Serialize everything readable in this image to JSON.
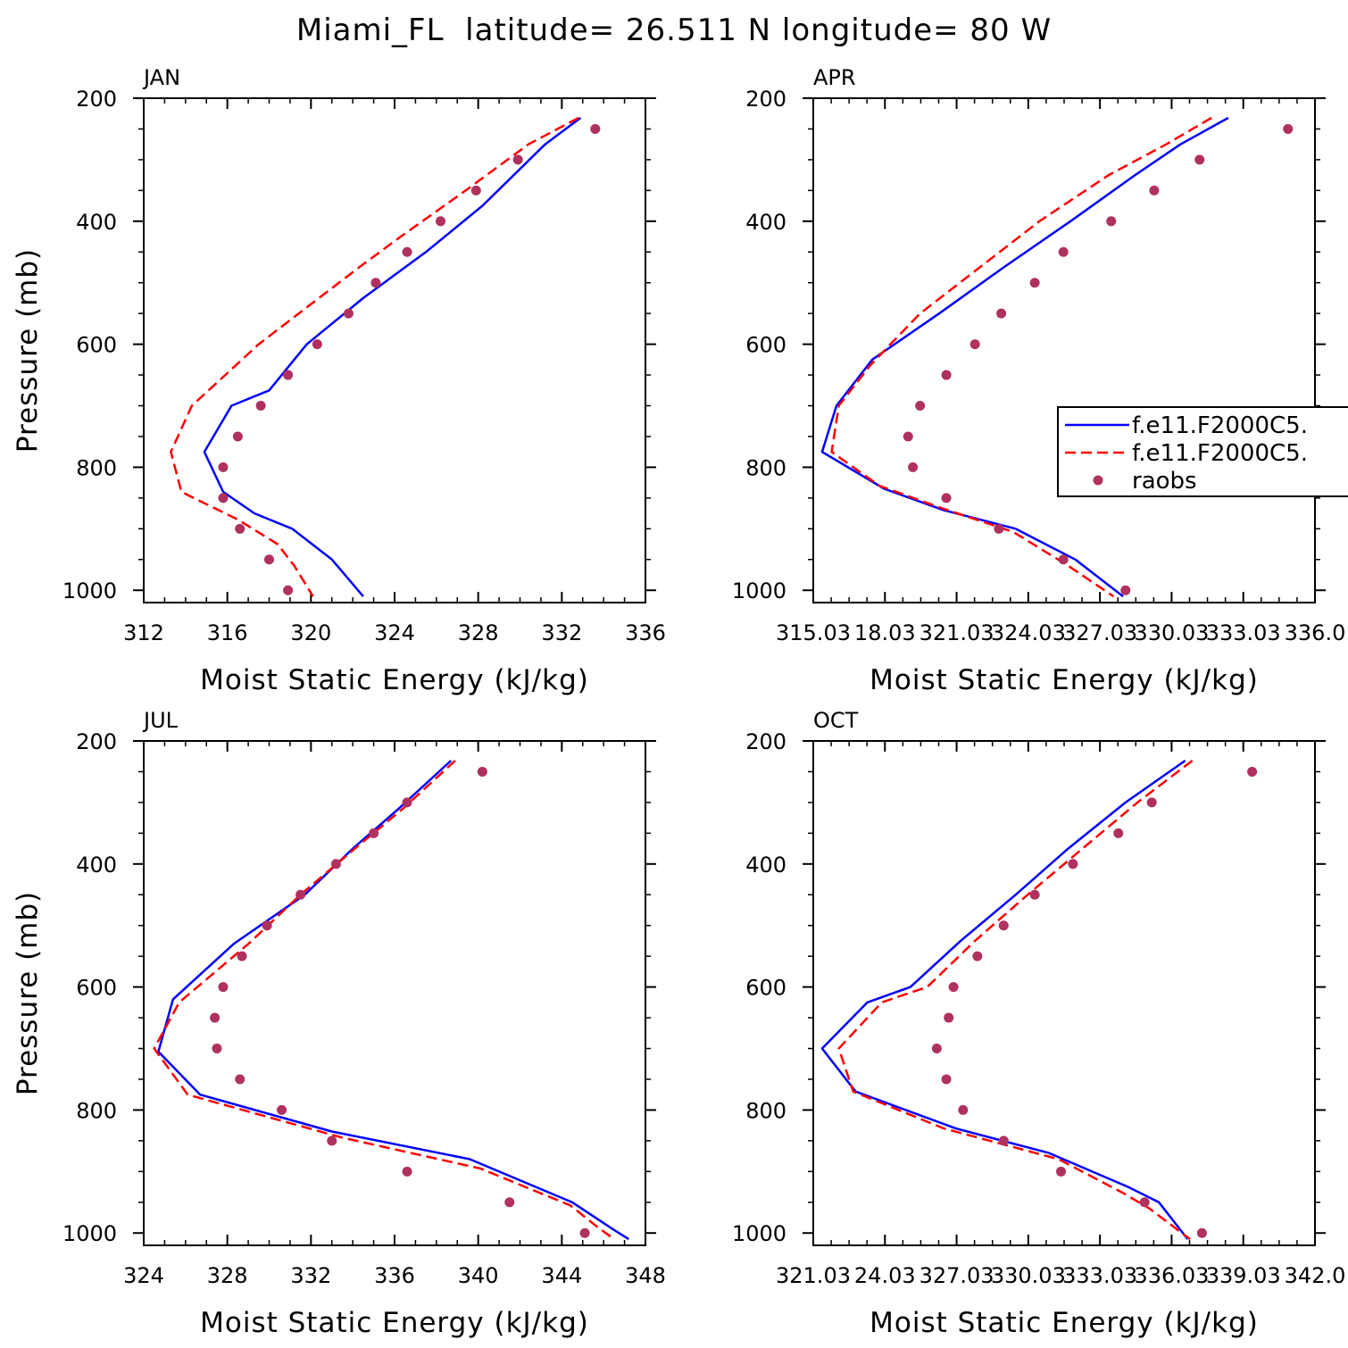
{
  "figure": {
    "title": "Miami_FL  latitude= 26.511 N longitude= 80 W"
  },
  "chart_data": [
    {
      "type": "line",
      "panel": "JAN",
      "xlabel": "Moist Static Energy (kJ/kg)",
      "ylabel": "Pressure (mb)",
      "xlim": [
        312,
        336
      ],
      "ylim": [
        1020,
        200
      ],
      "x_ticks": [
        "312",
        "316",
        "320",
        "324",
        "328",
        "332",
        "336"
      ],
      "y_ticks": [
        "200",
        "400",
        "600",
        "800",
        "1000"
      ],
      "y_ticks_values": [
        200,
        400,
        600,
        800,
        1000
      ],
      "series": [
        {
          "name": "f.e11.F2000C5.",
          "style": "solid",
          "color": "#0000ff",
          "x": [
            332.9,
            331.2,
            328.2,
            325.5,
            322.5,
            319.8,
            318.0,
            316.2,
            314.9,
            315.8,
            317.3,
            319.1,
            321.0,
            322.5
          ],
          "y": [
            232,
            275,
            375,
            450,
            525,
            600,
            675,
            700,
            775,
            840,
            875,
            900,
            950,
            1010
          ]
        },
        {
          "name": "f.e11.F2000C5.",
          "style": "dashed",
          "color": "#ff0000",
          "x": [
            332.8,
            330.4,
            327.4,
            324.3,
            322.3,
            319.8,
            317.5,
            314.3,
            313.3,
            313.8,
            316.5,
            318.4,
            319.2,
            320.1
          ],
          "y": [
            232,
            275,
            350,
            425,
            475,
            540,
            600,
            700,
            775,
            840,
            885,
            925,
            960,
            1010
          ]
        },
        {
          "name": "raobs",
          "style": "dots",
          "color": "#b03060",
          "x": [
            333.6,
            329.9,
            327.9,
            326.2,
            324.6,
            323.1,
            321.8,
            320.3,
            318.9,
            317.6,
            316.5,
            315.8,
            315.8,
            316.6,
            318.0,
            318.9
          ],
          "y": [
            250,
            300,
            350,
            400,
            450,
            500,
            550,
            600,
            650,
            700,
            750,
            800,
            850,
            900,
            950,
            1000
          ]
        }
      ]
    },
    {
      "type": "line",
      "panel": "APR",
      "xlabel": "Moist Static Energy (kJ/kg)",
      "ylabel": "",
      "xlim": [
        315.03,
        336.03
      ],
      "ylim": [
        1020,
        200
      ],
      "x_ticks": [
        "315.03",
        "18.03",
        "321.03",
        "324.03",
        "327.03",
        "330.03",
        "333.03",
        "336.0"
      ],
      "x_ticks_values": [
        315.03,
        318.03,
        321.03,
        324.03,
        327.03,
        330.03,
        333.03,
        336.03
      ],
      "y_ticks": [
        "200",
        "400",
        "600",
        "800",
        "1000"
      ],
      "y_ticks_values": [
        200,
        400,
        600,
        800,
        1000
      ],
      "legend": {
        "placement": "right-middle",
        "entries": [
          "f.e11.F2000C5.",
          "f.e11.F2000C5.",
          "raobs"
        ]
      },
      "series": [
        {
          "name": "f.e11.F2000C5.",
          "style": "solid",
          "color": "#0000ff",
          "x": [
            332.4,
            330.4,
            328.5,
            325.8,
            323.0,
            320.3,
            317.5,
            316.0,
            315.4,
            318.0,
            320.5,
            323.5,
            326.0,
            328.0
          ],
          "y": [
            232,
            275,
            325,
            400,
            475,
            550,
            625,
            700,
            775,
            835,
            870,
            900,
            950,
            1010
          ]
        },
        {
          "name": "f.e11.F2000C5.",
          "style": "dashed",
          "color": "#ff0000",
          "x": [
            331.7,
            329.8,
            327.4,
            324.5,
            322.0,
            319.5,
            317.4,
            316.1,
            315.8,
            317.8,
            320.3,
            323.4,
            325.7,
            327.6
          ],
          "y": [
            232,
            275,
            325,
            400,
            475,
            550,
            635,
            700,
            775,
            830,
            865,
            905,
            960,
            1010
          ]
        },
        {
          "name": "raobs",
          "style": "dots",
          "color": "#b03060",
          "x": [
            334.9,
            331.2,
            329.3,
            327.5,
            325.5,
            324.3,
            322.9,
            321.8,
            320.6,
            319.5,
            319.0,
            319.2,
            320.6,
            322.8,
            325.5,
            328.1
          ],
          "y": [
            250,
            300,
            350,
            400,
            450,
            500,
            550,
            600,
            650,
            700,
            750,
            800,
            850,
            900,
            950,
            1000
          ]
        }
      ]
    },
    {
      "type": "line",
      "panel": "JUL",
      "xlabel": "Moist Static Energy (kJ/kg)",
      "ylabel": "Pressure (mb)",
      "xlim": [
        324,
        348
      ],
      "ylim": [
        1020,
        200
      ],
      "x_ticks": [
        "324",
        "328",
        "332",
        "336",
        "340",
        "344",
        "348"
      ],
      "y_ticks": [
        "200",
        "400",
        "600",
        "800",
        "1000"
      ],
      "y_ticks_values": [
        200,
        400,
        600,
        800,
        1000
      ],
      "series": [
        {
          "name": "f.e11.F2000C5.",
          "style": "solid",
          "color": "#0000ff",
          "x": [
            338.7,
            336.2,
            334.0,
            331.7,
            328.3,
            325.4,
            324.7,
            326.7,
            333.0,
            339.6,
            344.5,
            346.5,
            347.2
          ],
          "y": [
            232,
            310,
            375,
            450,
            530,
            620,
            705,
            775,
            835,
            880,
            950,
            995,
            1010
          ]
        },
        {
          "name": "f.e11.F2000C5.",
          "style": "dashed",
          "color": "#ff0000",
          "x": [
            338.9,
            336.4,
            334.1,
            331.5,
            329.0,
            325.7,
            324.5,
            326.1,
            333.5,
            340.1,
            344.4,
            345.7,
            346.5
          ],
          "y": [
            232,
            310,
            375,
            450,
            530,
            625,
            700,
            775,
            845,
            895,
            955,
            990,
            1010
          ]
        },
        {
          "name": "raobs",
          "style": "dots",
          "color": "#b03060",
          "x": [
            340.2,
            336.6,
            335.0,
            333.2,
            331.5,
            329.9,
            328.7,
            327.8,
            327.4,
            327.5,
            328.6,
            330.6,
            333.0,
            336.6,
            341.5,
            345.1
          ],
          "y": [
            250,
            300,
            350,
            400,
            450,
            500,
            550,
            600,
            650,
            700,
            750,
            800,
            850,
            900,
            950,
            1000
          ]
        }
      ]
    },
    {
      "type": "line",
      "panel": "OCT",
      "xlabel": "Moist Static Energy (kJ/kg)",
      "ylabel": "",
      "xlim": [
        321.03,
        342.03
      ],
      "ylim": [
        1020,
        200
      ],
      "x_ticks": [
        "321.03",
        "24.03",
        "327.03",
        "330.03",
        "333.03",
        "336.03",
        "339.03",
        "342.0"
      ],
      "x_ticks_values": [
        321.03,
        324.03,
        327.03,
        330.03,
        333.03,
        336.03,
        339.03,
        342.03
      ],
      "y_ticks": [
        "200",
        "400",
        "600",
        "800",
        "1000"
      ],
      "y_ticks_values": [
        200,
        400,
        600,
        800,
        1000
      ],
      "series": [
        {
          "name": "f.e11.F2000C5.",
          "style": "solid",
          "color": "#0000ff",
          "x": [
            336.6,
            334.1,
            331.7,
            329.5,
            327.2,
            325.1,
            323.3,
            321.4,
            322.8,
            327.0,
            330.9,
            334.2,
            335.5,
            336.7
          ],
          "y": [
            232,
            300,
            375,
            450,
            525,
            600,
            625,
            700,
            770,
            830,
            870,
            925,
            950,
            1010
          ]
        },
        {
          "name": "f.e11.F2000C5.",
          "style": "dashed",
          "color": "#ff0000",
          "x": [
            336.9,
            334.6,
            332.3,
            330.0,
            327.8,
            325.8,
            323.9,
            322.1,
            322.7,
            326.5,
            331.3,
            334.0,
            335.1,
            336.8
          ],
          "y": [
            232,
            300,
            375,
            450,
            525,
            600,
            625,
            700,
            770,
            830,
            880,
            935,
            960,
            1010
          ]
        },
        {
          "name": "raobs",
          "style": "dots",
          "color": "#b03060",
          "x": [
            339.4,
            335.2,
            333.8,
            331.9,
            330.3,
            329.0,
            327.9,
            326.9,
            326.7,
            326.2,
            326.6,
            327.3,
            329.0,
            331.4,
            334.9,
            337.3
          ],
          "y": [
            250,
            300,
            350,
            400,
            450,
            500,
            550,
            600,
            650,
            700,
            750,
            800,
            850,
            900,
            950,
            1000
          ]
        }
      ]
    }
  ]
}
